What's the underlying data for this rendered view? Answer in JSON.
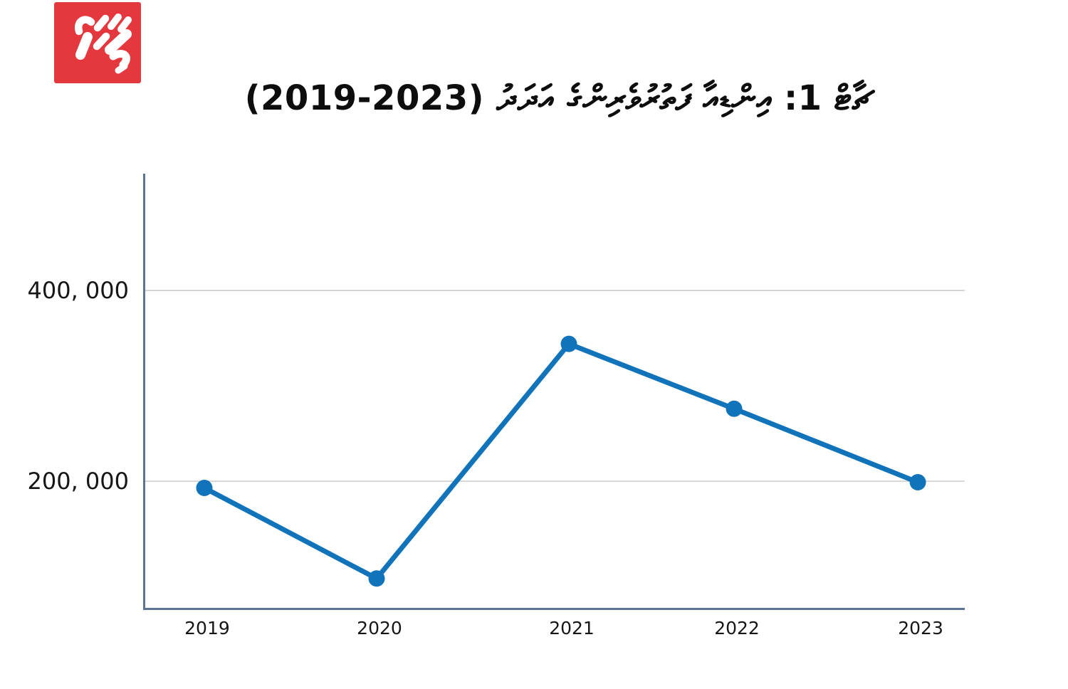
{
  "logo": {
    "name": "mihaaru-logo",
    "bg_color": "#e5383e",
    "glyph_color": "#ffffff"
  },
  "title": {
    "text": "ޗާޓް 1: އިންޑިއާ ފަތުރުވެރިންގެ އަދަދު (2023-2019)"
  },
  "chart_data": {
    "type": "line",
    "title": "ޗާޓް 1: އިންޑިއާ ފަތުރުވެރިންގެ އަދަދު (2023-2019)",
    "categories": [
      "2019",
      "2020",
      "2021",
      "2022",
      "2023"
    ],
    "values": [
      193000,
      98000,
      344000,
      276000,
      199000
    ],
    "yticks": [
      {
        "value": 400000,
        "label": "400, 000"
      },
      {
        "value": 200000,
        "label": "200, 000"
      }
    ],
    "ylim": [
      66500,
      522500
    ],
    "xlabel": "",
    "ylabel": "",
    "grid": "horizontal",
    "legend": false,
    "colors": {
      "line": "#1173b9",
      "point": "#1173b9",
      "axis": "#5d7494",
      "grid": "#cccccc",
      "text": "#161616"
    }
  }
}
